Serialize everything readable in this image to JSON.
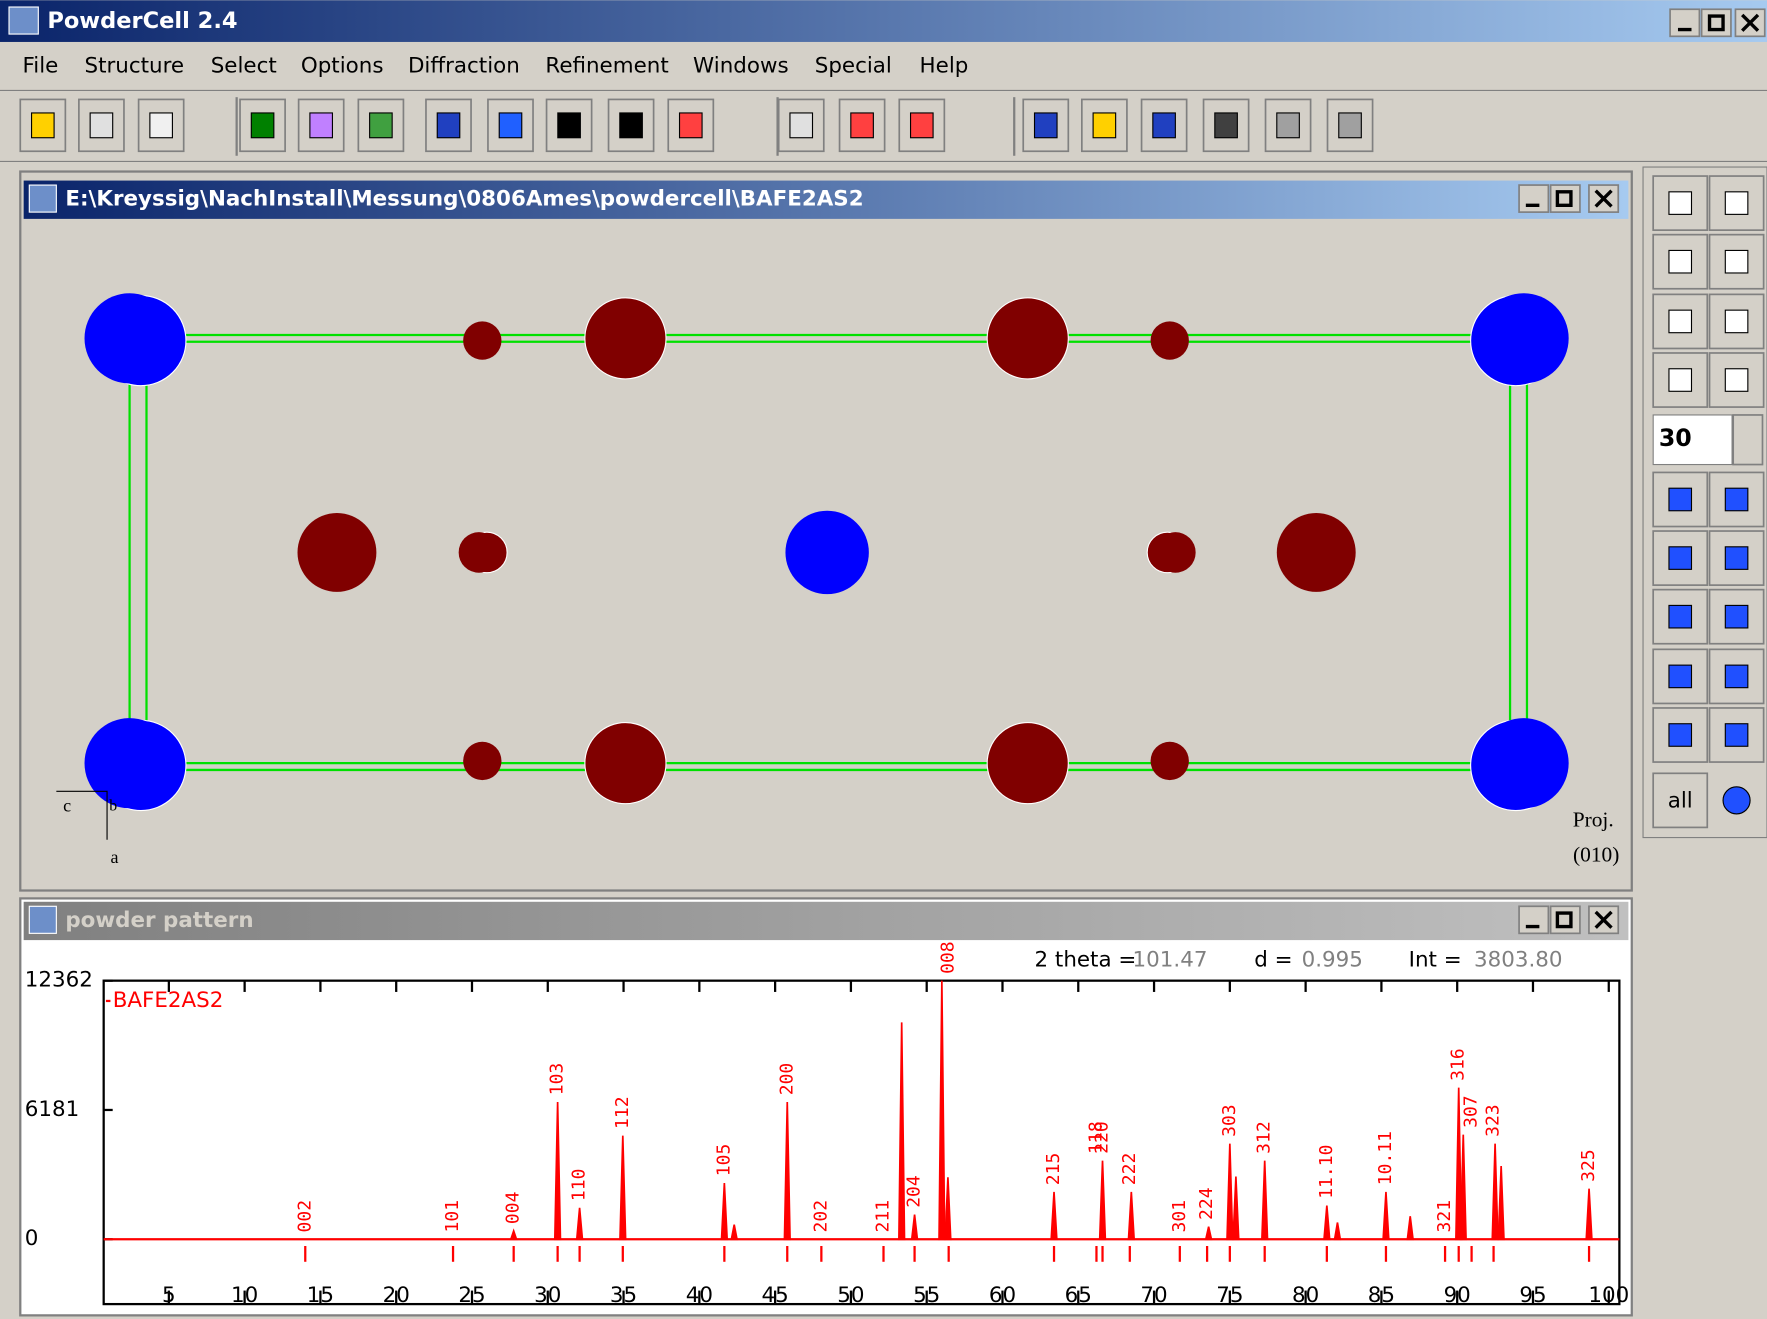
{
  "app": {
    "title": "PowderCell 2.4"
  },
  "menu": [
    "File",
    "Structure",
    "Select",
    "Options",
    "Diffraction",
    "Refinement",
    "Windows",
    "Special",
    "Help"
  ],
  "structure_window": {
    "title": "E:\\Kreyssig\\NachInstall\\Messung\\0806Ames\\powdercell\\BAFE2AS2",
    "axes": [
      "c",
      "b",
      "a"
    ],
    "projection": [
      "Proj.",
      "(010)"
    ]
  },
  "side_toolbar": {
    "rotation_step": "30",
    "all_button": "all"
  },
  "powder_window": {
    "title": "powder pattern",
    "readout": {
      "two_theta_label": "2 theta =",
      "two_theta": "101.47",
      "d_label": "d =",
      "d": "0.995",
      "int_label": "Int =",
      "int": "3803.80"
    }
  },
  "chart_data": {
    "type": "peaks",
    "series": [
      {
        "name": "BAFE2AS2",
        "color": "#ff0000",
        "x": [
          27.75,
          30.65,
          32.1,
          34.95,
          41.65,
          42.3,
          45.8,
          53.35,
          54.2,
          56.0,
          56.4,
          63.4,
          66.6,
          68.5,
          73.6,
          75.0,
          75.4,
          77.3,
          81.4,
          82.1,
          85.3,
          86.9,
          90.1,
          90.4,
          92.5,
          92.9,
          98.7
        ],
        "values": [
          400,
          6560,
          1500,
          4950,
          2690,
          700,
          6560,
          10370,
          1180,
          12362,
          2960,
          2260,
          3760,
          2260,
          600,
          4570,
          3000,
          3760,
          1610,
          800,
          2260,
          1100,
          7250,
          5000,
          4570,
          3500,
          2420
        ]
      }
    ],
    "reflections": {
      "labels": [
        "002",
        "101",
        "004",
        "103",
        "110",
        "112",
        "105",
        "200",
        "202",
        "211",
        "204",
        "008",
        "215",
        "118",
        "220",
        "222",
        "301",
        "224",
        "303",
        "312",
        "11.10",
        "10.11",
        "321",
        "316",
        "307",
        "323",
        "325"
      ],
      "x": [
        14.0,
        23.75,
        27.75,
        30.65,
        32.1,
        34.95,
        41.65,
        45.8,
        48.05,
        52.15,
        54.2,
        56.45,
        63.4,
        66.2,
        66.6,
        68.4,
        71.7,
        73.5,
        75.0,
        77.3,
        81.4,
        85.3,
        89.2,
        90.1,
        90.95,
        92.4,
        98.7
      ]
    },
    "xlim": [
      0.7,
      100.7
    ],
    "ylim": [
      -3100,
      12362
    ],
    "xticks": [
      5,
      10,
      15,
      20,
      25,
      30,
      35,
      40,
      45,
      50,
      55,
      60,
      65,
      70,
      75,
      80,
      85,
      90,
      95,
      100
    ],
    "yticks": [
      0,
      6181,
      12362
    ]
  }
}
